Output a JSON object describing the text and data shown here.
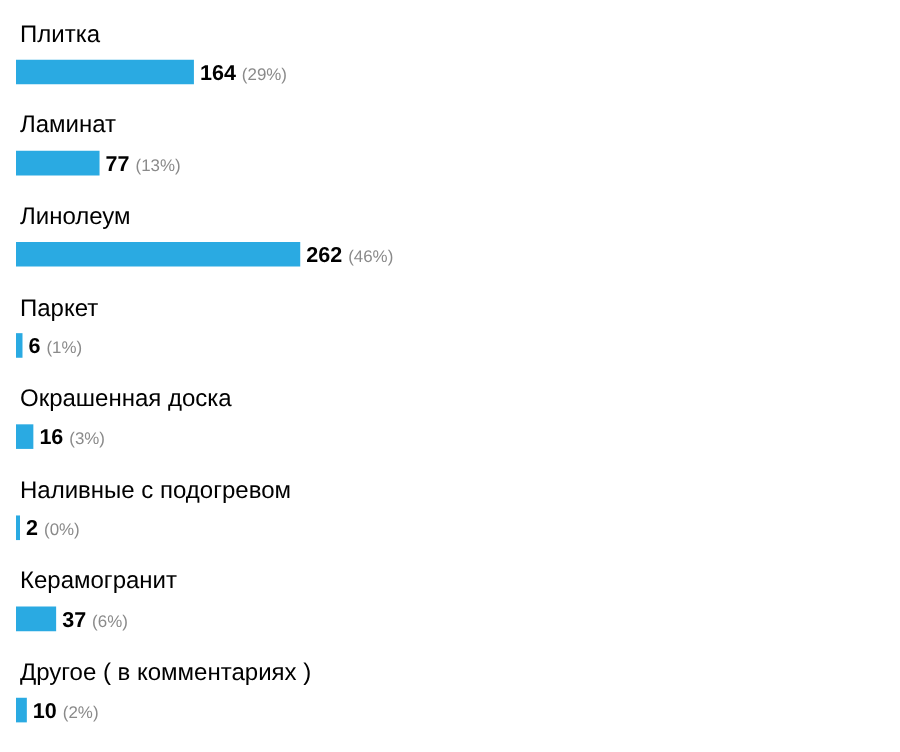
{
  "chart_data": {
    "type": "bar",
    "orientation": "horizontal",
    "categories": [
      "Плитка",
      "Ламинат",
      "Линолеум",
      "Паркет",
      "Окрашенная доска",
      "Наливные с подогревом",
      "Керамогранит",
      "Другое ( в комментариях )"
    ],
    "values": [
      164,
      77,
      262,
      6,
      16,
      2,
      37,
      10
    ],
    "value_labels": [
      "164 (29%)",
      "77 (13%)",
      "262 (46%)",
      "6 (1%)",
      "16 (3%)",
      "2 (0%)",
      "37 (6%)",
      "10 (2%)"
    ],
    "color": "#2aaae2"
  }
}
